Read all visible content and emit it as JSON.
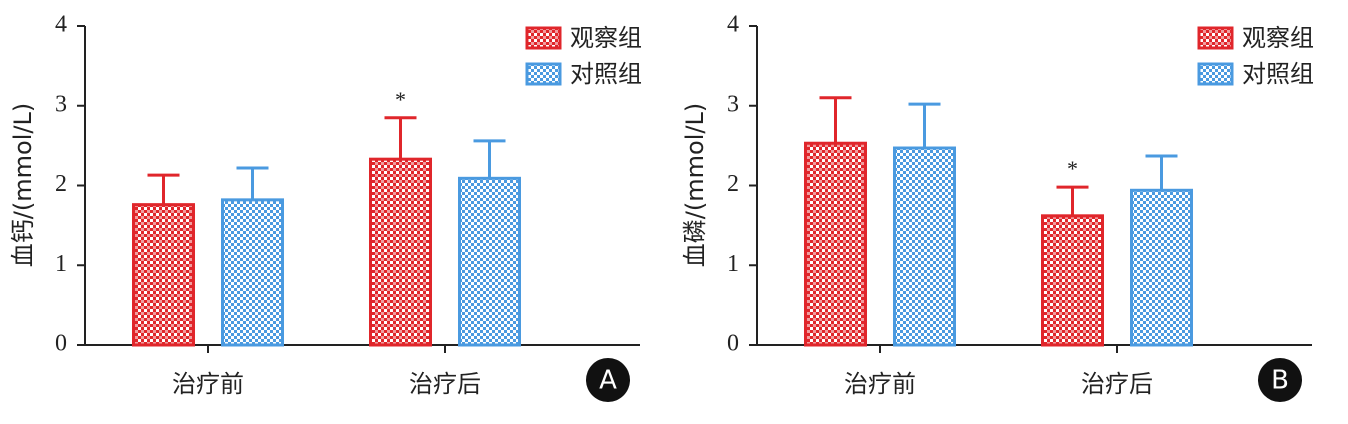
{
  "chart_data": [
    {
      "type": "bar",
      "y_label": "血钙/(mmol/L)",
      "panel_label": "A",
      "categories": [
        "治疗前",
        "治疗后"
      ],
      "series": [
        {
          "name": "观察组",
          "color": "#e0262b",
          "values": [
            1.76,
            2.33
          ],
          "errors": [
            0.37,
            0.52
          ]
        },
        {
          "name": "对照组",
          "color": "#4a9ae0",
          "values": [
            1.82,
            2.09
          ],
          "errors": [
            0.4,
            0.47
          ]
        }
      ],
      "annotations": [
        {
          "text": "*",
          "series": 0,
          "index": 1
        }
      ],
      "ylim": [
        0,
        4
      ],
      "yticks": [
        0,
        1,
        2,
        3,
        4
      ],
      "legend": "upper right"
    },
    {
      "type": "bar",
      "y_label": "血磷/(mmol/L)",
      "panel_label": "B",
      "categories": [
        "治疗前",
        "治疗后"
      ],
      "series": [
        {
          "name": "观察组",
          "color": "#e0262b",
          "values": [
            2.53,
            1.62
          ],
          "errors": [
            0.57,
            0.36
          ]
        },
        {
          "name": "对照组",
          "color": "#4a9ae0",
          "values": [
            2.47,
            1.94
          ],
          "errors": [
            0.55,
            0.43
          ]
        }
      ],
      "annotations": [
        {
          "text": "*",
          "series": 0,
          "index": 1
        }
      ],
      "ylim": [
        0,
        4
      ],
      "yticks": [
        0,
        1,
        2,
        3,
        4
      ],
      "legend": "upper right"
    }
  ]
}
